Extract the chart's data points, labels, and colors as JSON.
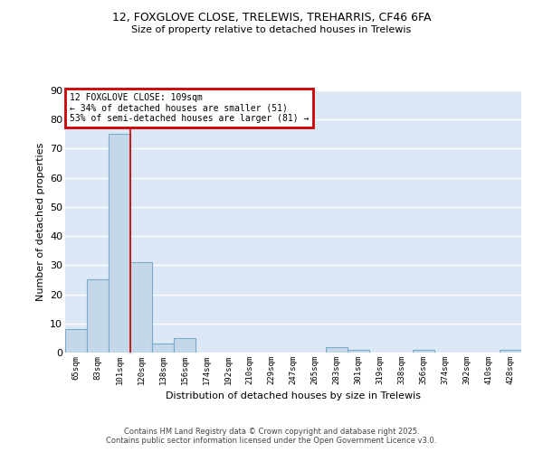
{
  "title1": "12, FOXGLOVE CLOSE, TRELEWIS, TREHARRIS, CF46 6FA",
  "title2": "Size of property relative to detached houses in Trelewis",
  "xlabel": "Distribution of detached houses by size in Trelewis",
  "ylabel": "Number of detached properties",
  "categories": [
    "65sqm",
    "83sqm",
    "101sqm",
    "120sqm",
    "138sqm",
    "156sqm",
    "174sqm",
    "192sqm",
    "210sqm",
    "229sqm",
    "247sqm",
    "265sqm",
    "283sqm",
    "301sqm",
    "319sqm",
    "338sqm",
    "356sqm",
    "374sqm",
    "392sqm",
    "410sqm",
    "428sqm"
  ],
  "values": [
    8,
    25,
    75,
    31,
    3,
    5,
    0,
    0,
    0,
    0,
    0,
    0,
    2,
    1,
    0,
    0,
    1,
    0,
    0,
    0,
    1
  ],
  "bar_color": "#c5d8ea",
  "bar_edge_color": "#7aaac8",
  "vline_x": 2.5,
  "vline_color": "#cc0000",
  "annotation_text": "12 FOXGLOVE CLOSE: 109sqm\n← 34% of detached houses are smaller (51)\n53% of semi-detached houses are larger (81) →",
  "annotation_box_color": "#ffffff",
  "annotation_box_edge": "#cc0000",
  "ylim": [
    0,
    90
  ],
  "yticks": [
    0,
    10,
    20,
    30,
    40,
    50,
    60,
    70,
    80,
    90
  ],
  "background_color": "#dce8f5",
  "grid_color": "#ffffff",
  "fig_background": "#ffffff",
  "footnote": "Contains HM Land Registry data © Crown copyright and database right 2025.\nContains public sector information licensed under the Open Government Licence v3.0."
}
